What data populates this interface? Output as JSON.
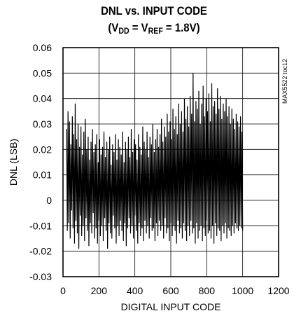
{
  "title_line1": "DNL vs. INPUT CODE",
  "title_line2": {
    "prefix": "(V",
    "sub1": "DD",
    "mid": " = V",
    "sub2": "REF",
    "suffix": " = 1.8V)"
  },
  "side_code": "MAX5522 toc12",
  "chart_data": {
    "type": "line",
    "title": "DNL vs. INPUT CODE (VDD = VREF = 1.8V)",
    "xlabel": "DIGITAL INPUT CODE",
    "ylabel": "DNL (LSB)",
    "xlim": [
      0,
      1200
    ],
    "ylim": [
      -0.03,
      0.06
    ],
    "x_ticks": [
      "0",
      "200",
      "400",
      "600",
      "800",
      "1000",
      "1200"
    ],
    "y_ticks": [
      "0.06",
      "0.05",
      "0.04",
      "0.03",
      "0.02",
      "0.01",
      "0",
      "-0.01",
      "-0.02",
      "-0.03"
    ],
    "grid": true,
    "series": [
      {
        "color": "#000000",
        "x_start": 20,
        "x_end": 1000,
        "x_step": 4,
        "values": [
          0.028,
          -0.012,
          0.035,
          -0.009,
          0.031,
          -0.015,
          0.022,
          -0.004,
          0.033,
          -0.011,
          0.026,
          -0.017,
          0.038,
          -0.008,
          0.024,
          -0.013,
          0.03,
          -0.019,
          0.021,
          -0.006,
          0.029,
          -0.014,
          0.018,
          -0.01,
          0.027,
          -0.016,
          0.032,
          -0.007,
          0.02,
          -0.012,
          0.025,
          -0.018,
          0.016,
          -0.009,
          0.023,
          -0.013,
          0.028,
          -0.005,
          0.019,
          -0.015,
          0.022,
          -0.011,
          0.026,
          -0.017,
          0.015,
          -0.008,
          0.024,
          -0.014,
          0.018,
          -0.01,
          0.021,
          -0.016,
          0.027,
          -0.007,
          0.017,
          -0.012,
          0.023,
          -0.019,
          0.02,
          -0.009,
          0.025,
          -0.013,
          0.014,
          -0.015,
          0.022,
          -0.006,
          0.019,
          -0.011,
          0.026,
          -0.017,
          0.016,
          -0.01,
          0.024,
          -0.014,
          0.021,
          -0.008,
          0.018,
          -0.012,
          0.027,
          -0.016,
          0.015,
          -0.009,
          0.023,
          -0.018,
          0.02,
          -0.011,
          0.025,
          -0.007,
          0.017,
          -0.013,
          0.028,
          -0.01,
          0.019,
          -0.015,
          0.024,
          -0.006,
          0.022,
          -0.012,
          0.016,
          -0.017,
          0.026,
          -0.009,
          0.021,
          -0.014,
          0.018,
          -0.011,
          0.029,
          -0.016,
          0.023,
          -0.008,
          0.02,
          -0.013,
          0.027,
          -0.01,
          0.017,
          -0.015,
          0.025,
          -0.007,
          0.022,
          -0.012,
          0.03,
          -0.011,
          0.019,
          -0.016,
          0.024,
          -0.009,
          0.028,
          -0.014,
          0.021,
          -0.008,
          0.026,
          -0.012,
          0.032,
          -0.01,
          0.023,
          -0.015,
          0.029,
          -0.007,
          0.025,
          -0.013,
          0.034,
          -0.011,
          0.027,
          -0.016,
          0.031,
          -0.009,
          0.024,
          -0.014,
          0.036,
          -0.01,
          0.028,
          -0.012,
          0.033,
          -0.017,
          0.026,
          -0.008,
          0.038,
          -0.013,
          0.03,
          -0.011,
          0.035,
          -0.015,
          0.027,
          -0.009,
          0.04,
          -0.012,
          0.032,
          -0.016,
          0.037,
          -0.01,
          0.029,
          -0.014,
          0.041,
          -0.008,
          0.034,
          -0.013,
          0.05,
          -0.011,
          0.031,
          -0.017,
          0.039,
          -0.009,
          0.036,
          -0.015,
          0.043,
          -0.012,
          0.03,
          -0.01,
          0.038,
          -0.016,
          0.045,
          -0.011,
          0.033,
          -0.014,
          0.04,
          -0.008,
          0.035,
          -0.013,
          0.042,
          -0.012,
          0.031,
          -0.015,
          0.046,
          -0.01,
          0.037,
          -0.017,
          0.039,
          -0.009,
          0.034,
          -0.014,
          0.044,
          -0.011,
          0.036,
          -0.012,
          0.041,
          -0.016,
          0.032,
          -0.01,
          0.038,
          -0.013,
          0.035,
          -0.009,
          0.04,
          -0.015,
          0.033,
          -0.011,
          0.037,
          -0.012,
          0.03,
          -0.014,
          0.036,
          -0.01,
          0.032,
          -0.013,
          0.028,
          -0.009,
          0.034,
          -0.011,
          0.031,
          -0.012,
          0.029,
          -0.01,
          0.033,
          -0.011,
          0.027,
          -0.012,
          0.03,
          -0.01
        ]
      }
    ]
  }
}
